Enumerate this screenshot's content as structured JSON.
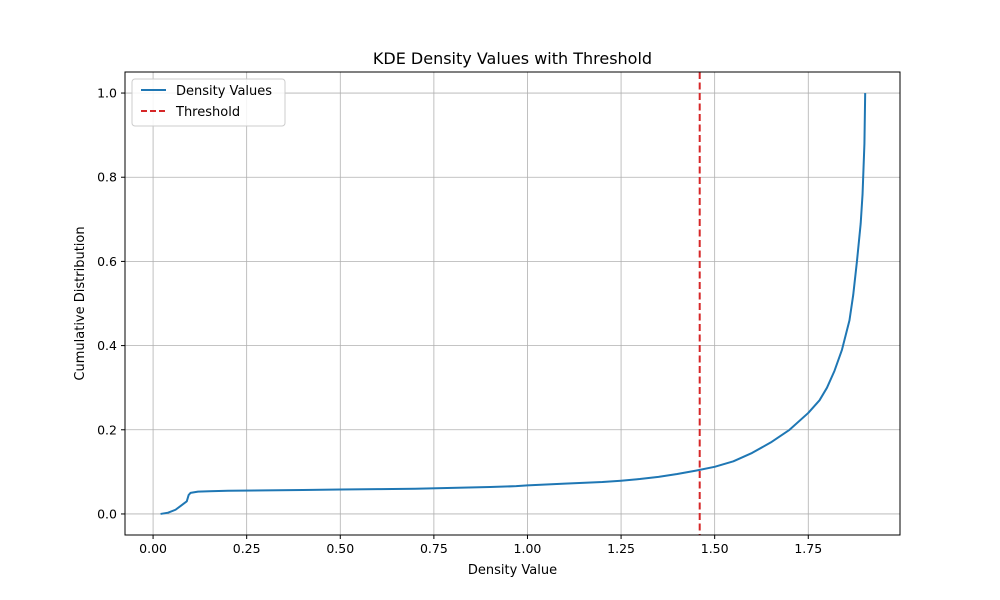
{
  "chart_data": {
    "type": "line",
    "title": "KDE Density Values with Threshold",
    "xlabel": "Density Value",
    "ylabel": "Cumulative Distribution",
    "xlim": [
      -0.075,
      1.995
    ],
    "ylim": [
      -0.05,
      1.05
    ],
    "xticks": [
      0.0,
      0.25,
      0.5,
      0.75,
      1.0,
      1.25,
      1.5,
      1.75
    ],
    "xtick_labels": [
      "0.00",
      "0.25",
      "0.50",
      "0.75",
      "1.00",
      "1.25",
      "1.50",
      "1.75"
    ],
    "yticks": [
      0.0,
      0.2,
      0.4,
      0.6,
      0.8,
      1.0
    ],
    "ytick_labels": [
      "0.0",
      "0.2",
      "0.4",
      "0.6",
      "0.8",
      "1.0"
    ],
    "grid": true,
    "legend_position": "top-left",
    "series": [
      {
        "name": "Density Values",
        "color": "#1f77b4",
        "style": "solid",
        "x": [
          0.02,
          0.04,
          0.06,
          0.075,
          0.09,
          0.095,
          0.1,
          0.12,
          0.15,
          0.2,
          0.3,
          0.4,
          0.5,
          0.6,
          0.7,
          0.8,
          0.9,
          0.97,
          1.0,
          1.1,
          1.2,
          1.25,
          1.3,
          1.35,
          1.4,
          1.45,
          1.5,
          1.55,
          1.6,
          1.65,
          1.7,
          1.75,
          1.78,
          1.8,
          1.82,
          1.84,
          1.86,
          1.87,
          1.88,
          1.89,
          1.895,
          1.9,
          1.902
        ],
        "y": [
          0.0,
          0.003,
          0.01,
          0.02,
          0.03,
          0.045,
          0.05,
          0.053,
          0.054,
          0.055,
          0.056,
          0.057,
          0.058,
          0.059,
          0.06,
          0.062,
          0.064,
          0.066,
          0.068,
          0.072,
          0.076,
          0.079,
          0.083,
          0.088,
          0.095,
          0.103,
          0.112,
          0.125,
          0.145,
          0.17,
          0.2,
          0.24,
          0.27,
          0.3,
          0.34,
          0.39,
          0.46,
          0.52,
          0.6,
          0.69,
          0.76,
          0.88,
          1.0
        ]
      },
      {
        "name": "Threshold",
        "color": "#d62728",
        "style": "dashed",
        "x_value": 1.46
      }
    ]
  }
}
